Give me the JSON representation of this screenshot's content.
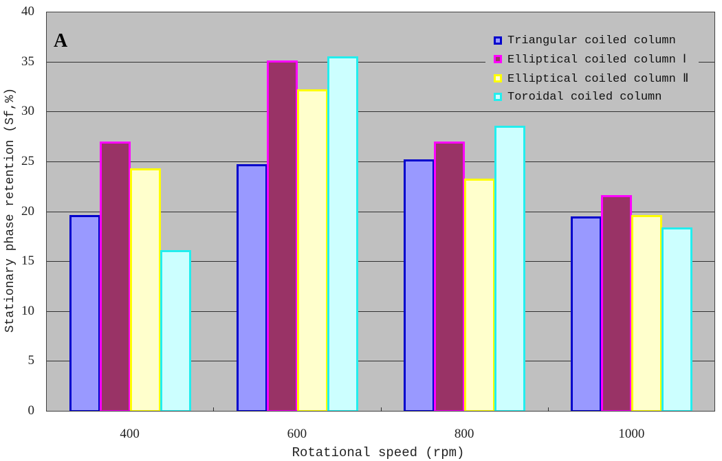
{
  "chart_data": {
    "type": "bar",
    "title": "",
    "panel_label": "A",
    "xlabel": "Rotational speed (rpm)",
    "ylabel": "Stationary phase retention (Sf,%)",
    "categories": [
      "400",
      "600",
      "800",
      "1000"
    ],
    "ylim": [
      0,
      40
    ],
    "yticks": [
      "0",
      "5",
      "10",
      "15",
      "20",
      "25",
      "30",
      "35",
      "40"
    ],
    "grid": true,
    "legend_position": "upper right (inside plot)",
    "series": [
      {
        "name": "Triangular coiled column",
        "values": [
          19.6,
          24.7,
          25.2,
          19.5
        ],
        "fill": "#9999ff",
        "border": "#0000cc"
      },
      {
        "name": "Elliptical coiled column Ⅰ",
        "values": [
          27.0,
          35.1,
          27.0,
          21.6
        ],
        "fill": "#993366",
        "border": "#ff00ff"
      },
      {
        "name": "Elliptical coiled column Ⅱ",
        "values": [
          24.3,
          32.2,
          23.3,
          19.6
        ],
        "fill": "#ffffcc",
        "border": "#ffff00"
      },
      {
        "name": "Toroidal coiled column",
        "values": [
          16.1,
          35.5,
          28.6,
          18.4
        ],
        "fill": "#ccffff",
        "border": "#22eeee"
      }
    ]
  },
  "colors": {
    "plot_background": "#c0c0c0",
    "gridline": "#303030"
  }
}
